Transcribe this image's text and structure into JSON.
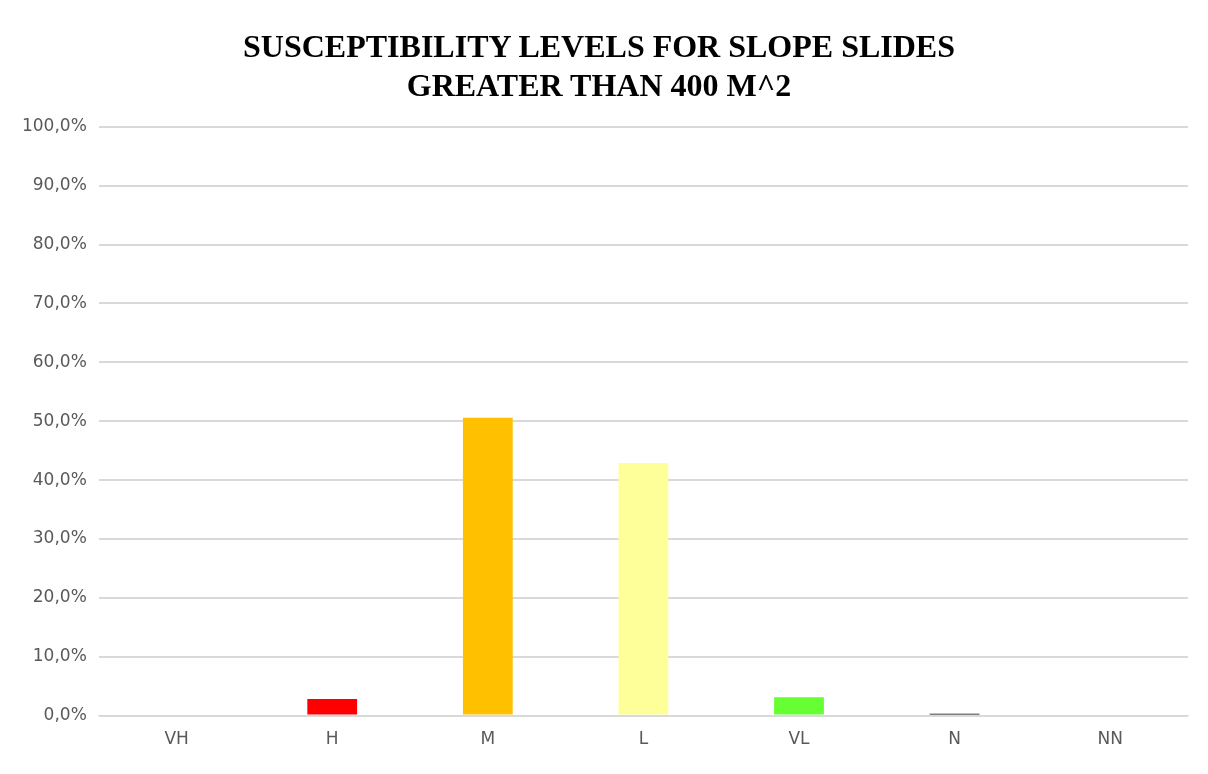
{
  "chart_data": {
    "type": "bar",
    "title": [
      "SUSCEPTIBILITY LEVELS FOR SLOPE SLIDES",
      "GREATER THAN 400 M^2"
    ],
    "categories": [
      "VH",
      "H",
      "M",
      "L",
      "VL",
      "N",
      "NN"
    ],
    "values": [
      0,
      2.8,
      50.6,
      42.9,
      3.1,
      0.3,
      0
    ],
    "colors": [
      "#c00000",
      "#ff0000",
      "#ffc000",
      "#ffff99",
      "#66ff33",
      "#000000",
      "#7f7f7f"
    ],
    "ylim": [
      0,
      100
    ],
    "yticks": [
      {
        "value": 0,
        "label": "0,0%"
      },
      {
        "value": 10,
        "label": "10,0%"
      },
      {
        "value": 20,
        "label": "20,0%"
      },
      {
        "value": 30,
        "label": "30,0%"
      },
      {
        "value": 40,
        "label": "40,0%"
      },
      {
        "value": 50,
        "label": "50,0%"
      },
      {
        "value": 60,
        "label": "60,0%"
      },
      {
        "value": 70,
        "label": "70,0%"
      },
      {
        "value": 80,
        "label": "80,0%"
      },
      {
        "value": 90,
        "label": "90,0%"
      },
      {
        "value": 100,
        "label": "100,0%"
      }
    ],
    "grid": "y"
  }
}
